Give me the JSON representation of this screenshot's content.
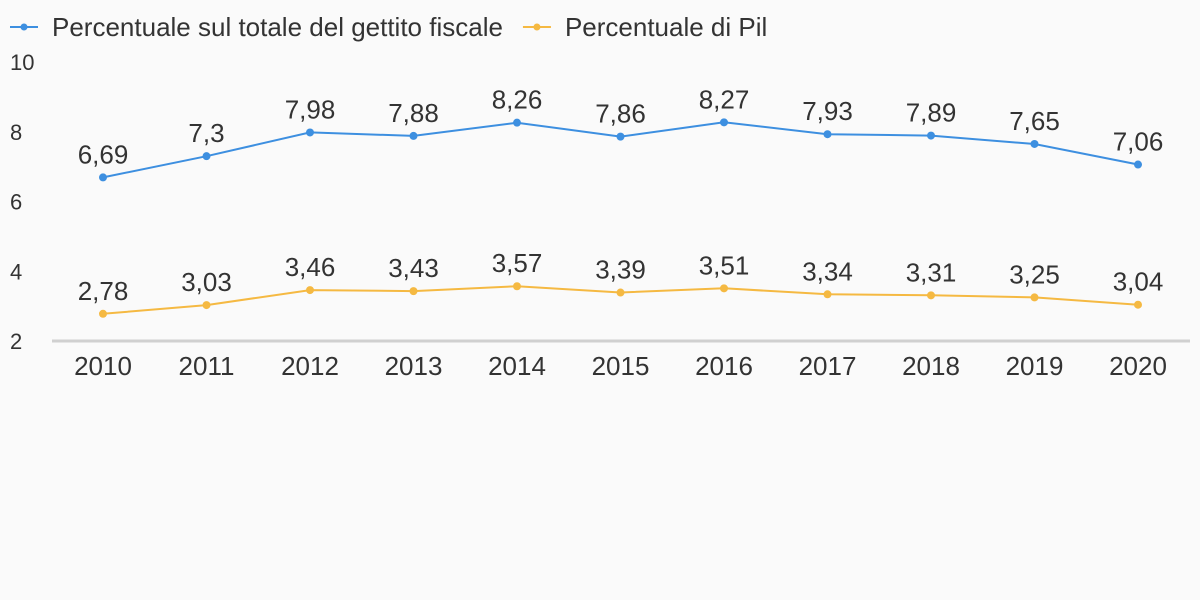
{
  "chart_data": {
    "type": "line",
    "title": "",
    "xlabel": "",
    "ylabel": "",
    "categories": [
      "2010",
      "2011",
      "2012",
      "2013",
      "2014",
      "2015",
      "2016",
      "2017",
      "2018",
      "2019",
      "2020"
    ],
    "ylim": [
      2,
      10
    ],
    "yticks": [
      "2",
      "4",
      "6",
      "8",
      "10"
    ],
    "grid": false,
    "legend_position": "top-left",
    "series": [
      {
        "name": "Percentuale sul totale del gettito fiscale",
        "color": "#3d8fe0",
        "values": [
          6.69,
          7.3,
          7.98,
          7.88,
          8.26,
          7.86,
          8.27,
          7.93,
          7.89,
          7.65,
          7.06
        ],
        "labels": [
          "6,69",
          "7,3",
          "7,98",
          "7,88",
          "8,26",
          "7,86",
          "8,27",
          "7,93",
          "7,89",
          "7,65",
          "7,06"
        ]
      },
      {
        "name": "Percentuale di Pil",
        "color": "#f5b942",
        "values": [
          2.78,
          3.03,
          3.46,
          3.43,
          3.57,
          3.39,
          3.51,
          3.34,
          3.31,
          3.25,
          3.04
        ],
        "labels": [
          "2,78",
          "3,03",
          "3,46",
          "3,43",
          "3,57",
          "3,39",
          "3,51",
          "3,34",
          "3,31",
          "3,25",
          "3,04"
        ]
      }
    ]
  }
}
